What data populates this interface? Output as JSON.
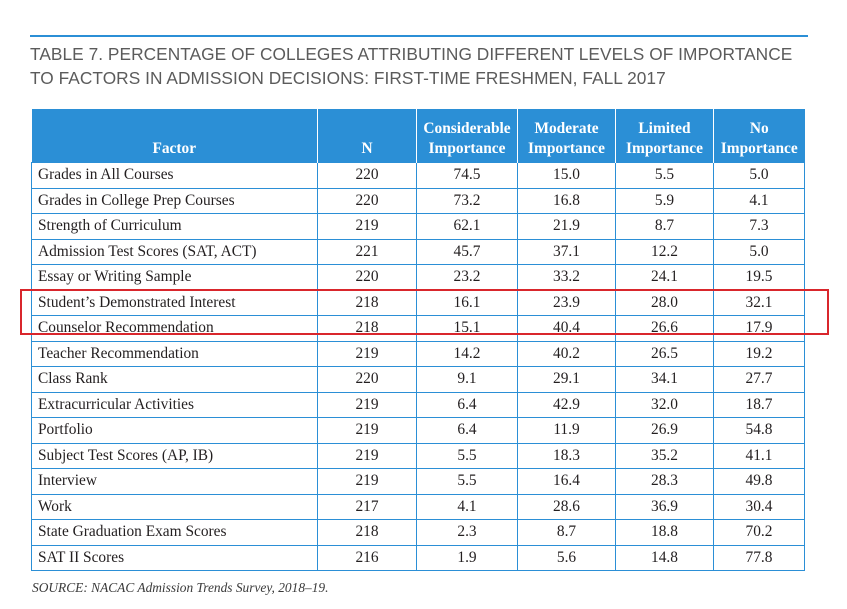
{
  "title_line1": "TABLE 7. PERCENTAGE OF COLLEGES ATTRIBUTING DIFFERENT LEVELS OF IMPORTANCE",
  "title_line2": "TO FACTORS IN ADMISSION DECISIONS: FIRST-TIME FRESHMEN, FALL 2017",
  "header": {
    "factor": "Factor",
    "n": "N",
    "considerable": [
      "Considerable",
      "Importance"
    ],
    "moderate": [
      "Moderate",
      "Importance"
    ],
    "limited": [
      "Limited",
      "Importance"
    ],
    "no": [
      "No",
      "Importance"
    ]
  },
  "rows": [
    {
      "factor": "Grades in All Courses",
      "n": "220",
      "considerable": "74.5",
      "moderate": "15.0",
      "limited": "5.5",
      "no": "5.0"
    },
    {
      "factor": "Grades in College Prep Courses",
      "n": "220",
      "considerable": "73.2",
      "moderate": "16.8",
      "limited": "5.9",
      "no": "4.1"
    },
    {
      "factor": "Strength of Curriculum",
      "n": "219",
      "considerable": "62.1",
      "moderate": "21.9",
      "limited": "8.7",
      "no": "7.3"
    },
    {
      "factor": "Admission Test Scores (SAT, ACT)",
      "n": "221",
      "considerable": "45.7",
      "moderate": "37.1",
      "limited": "12.2",
      "no": "5.0"
    },
    {
      "factor": "Essay or Writing Sample",
      "n": "220",
      "considerable": "23.2",
      "moderate": "33.2",
      "limited": "24.1",
      "no": "19.5"
    },
    {
      "factor": "Student’s Demonstrated Interest",
      "n": "218",
      "considerable": "16.1",
      "moderate": "23.9",
      "limited": "28.0",
      "no": "32.1"
    },
    {
      "factor": "Counselor Recommendation",
      "n": "218",
      "considerable": "15.1",
      "moderate": "40.4",
      "limited": "26.6",
      "no": "17.9"
    },
    {
      "factor": "Teacher Recommendation",
      "n": "219",
      "considerable": "14.2",
      "moderate": "40.2",
      "limited": "26.5",
      "no": "19.2"
    },
    {
      "factor": "Class Rank",
      "n": "220",
      "considerable": "9.1",
      "moderate": "29.1",
      "limited": "34.1",
      "no": "27.7"
    },
    {
      "factor": "Extracurricular Activities",
      "n": "219",
      "considerable": "6.4",
      "moderate": "42.9",
      "limited": "32.0",
      "no": "18.7"
    },
    {
      "factor": "Portfolio",
      "n": "219",
      "considerable": "6.4",
      "moderate": "11.9",
      "limited": "26.9",
      "no": "54.8"
    },
    {
      "factor": "Subject Test Scores (AP, IB)",
      "n": "219",
      "considerable": "5.5",
      "moderate": "18.3",
      "limited": "35.2",
      "no": "41.1"
    },
    {
      "factor": "Interview",
      "n": "219",
      "considerable": "5.5",
      "moderate": "16.4",
      "limited": "28.3",
      "no": "49.8"
    },
    {
      "factor": "Work",
      "n": "217",
      "considerable": "4.1",
      "moderate": "28.6",
      "limited": "36.9",
      "no": "30.4"
    },
    {
      "factor": "State Graduation Exam Scores",
      "n": "218",
      "considerable": "2.3",
      "moderate": "8.7",
      "limited": "18.8",
      "no": "70.2"
    },
    {
      "factor": "SAT II Scores",
      "n": "216",
      "considerable": "1.9",
      "moderate": "5.6",
      "limited": "14.8",
      "no": "77.8"
    }
  ],
  "source": "SOURCE: NACAC Admission Trends Survey, 2018–19.",
  "colors": {
    "header_bg": "#2b8fd6",
    "highlight": "#d9262c"
  }
}
